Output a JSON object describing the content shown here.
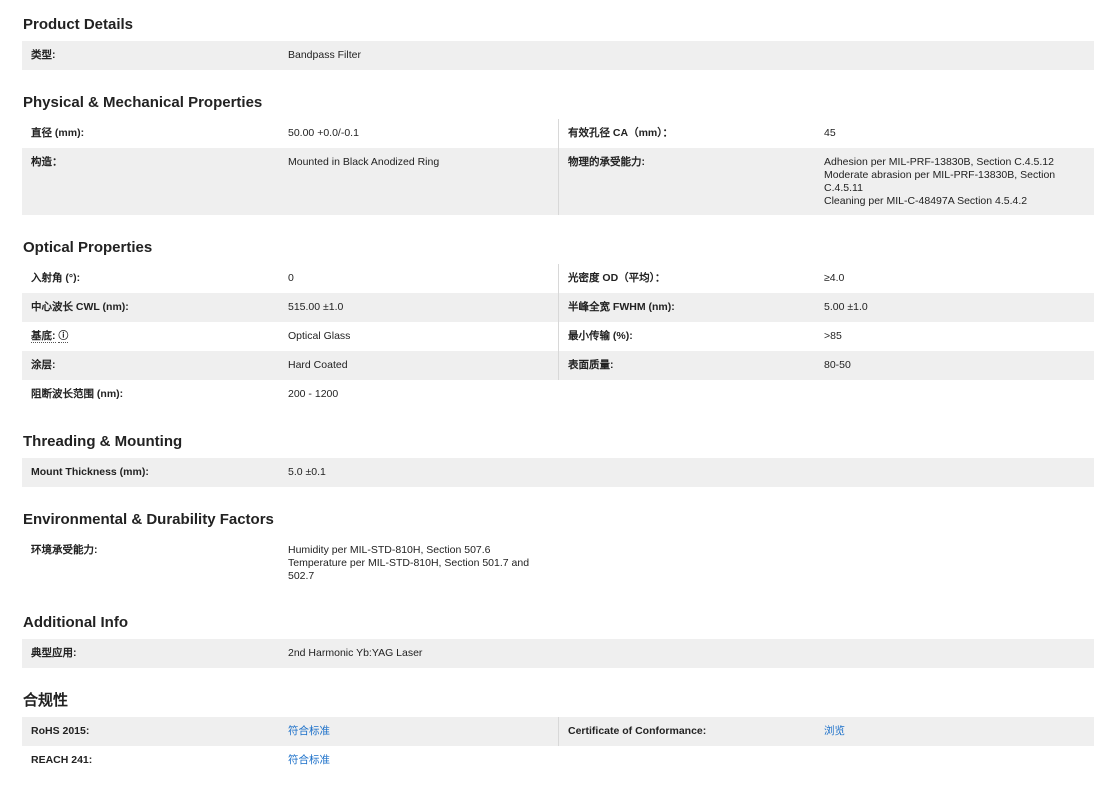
{
  "sections": [
    {
      "title": "Product Details",
      "rows": [
        {
          "left": {
            "label": "类型:",
            "value": [
              "Bandpass Filter"
            ]
          }
        }
      ]
    },
    {
      "title": "Physical & Mechanical Properties",
      "rows": [
        {
          "left": {
            "label": "直径 (mm):",
            "value": [
              "50.00 +0.0/-0.1"
            ]
          },
          "right": {
            "label": "有效孔径 CA（mm）：",
            "value": [
              "45"
            ]
          }
        },
        {
          "left": {
            "label": "构造：",
            "value": [
              "Mounted in Black Anodized Ring"
            ]
          },
          "right": {
            "label": "物理的承受能力:",
            "value": [
              "Adhesion per MIL-PRF-13830B, Section C.4.5.12",
              "Moderate abrasion per MIL-PRF-13830B, Section C.4.5.11",
              "Cleaning per MIL-C-48497A Section 4.5.4.2"
            ]
          }
        }
      ]
    },
    {
      "title": "Optical Properties",
      "rows": [
        {
          "left": {
            "label": "入射角 (°):",
            "value": [
              "0"
            ]
          },
          "right": {
            "label": "光密度 OD（平均）：",
            "value": [
              "≥4.0"
            ]
          }
        },
        {
          "left": {
            "label": "中心波长 CWL (nm):",
            "value": [
              "515.00 ±1.0"
            ]
          },
          "right": {
            "label": "半峰全宽 FWHM (nm):",
            "value": [
              "5.00 ±1.0"
            ]
          }
        },
        {
          "left": {
            "label": "基底:",
            "info_icon": "ⓘ",
            "value": [
              "Optical Glass"
            ]
          },
          "right": {
            "label": "最小传输 (%):",
            "value": [
              ">85"
            ]
          }
        },
        {
          "left": {
            "label": "涂层:",
            "value": [
              "Hard Coated"
            ]
          },
          "right": {
            "label": "表面质量:",
            "value": [
              "80-50"
            ]
          }
        },
        {
          "left": {
            "label": "阻断波长范围 (nm):",
            "value": [
              "200 - 1200"
            ]
          }
        }
      ]
    },
    {
      "title": "Threading & Mounting",
      "rows": [
        {
          "left": {
            "label": "Mount Thickness (mm):",
            "value": [
              "5.0 ±0.1"
            ]
          }
        }
      ]
    },
    {
      "title": "Environmental & Durability Factors",
      "rows": [
        {
          "left": {
            "label": "环境承受能力:",
            "value": [
              "Humidity per MIL-STD-810H, Section 507.6",
              "Temperature per MIL-STD-810H, Section 501.7 and 502.7"
            ]
          }
        }
      ]
    },
    {
      "title": "Additional Info",
      "rows": [
        {
          "left": {
            "label": "典型应用:",
            "value": [
              "2nd Harmonic Yb:YAG Laser"
            ]
          }
        }
      ]
    },
    {
      "title": "合规性",
      "rows": [
        {
          "left": {
            "label": "RoHS 2015:",
            "link": "符合标准"
          },
          "right": {
            "label": "Certificate of Conformance:",
            "link": "浏览"
          }
        },
        {
          "left": {
            "label": "REACH 241:",
            "link": "符合标准"
          }
        }
      ]
    }
  ],
  "colors": {
    "link": "#1a6fc9",
    "row_shade": "#efefef",
    "text": "#222222"
  }
}
